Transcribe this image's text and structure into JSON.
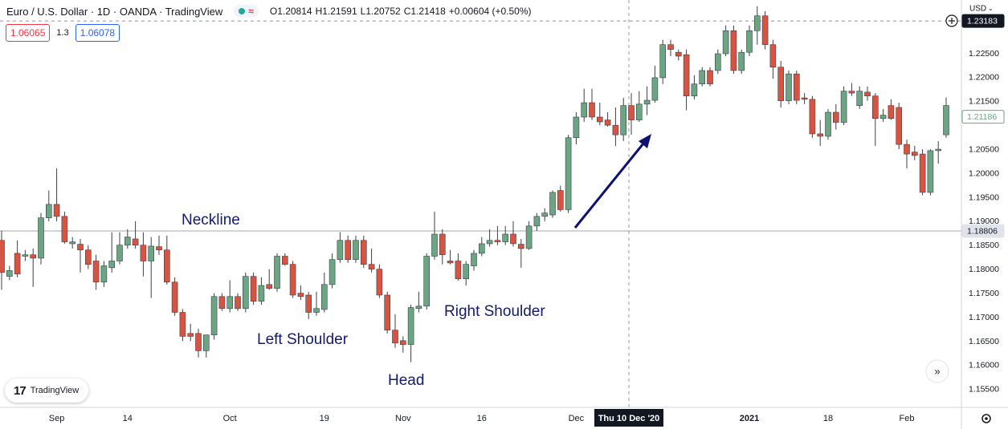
{
  "chart_data": {
    "type": "candlestick",
    "header": {
      "symbol": "Euro / U.S. Dollar · 1D · OANDA · TradingView",
      "ohlc": [
        {
          "label": "O",
          "value": "1.20814"
        },
        {
          "label": "H",
          "value": "1.21591"
        },
        {
          "label": "L",
          "value": "1.20752"
        },
        {
          "label": "C",
          "value": "1.21418"
        }
      ],
      "change": "+0.00604 (+0.50%)"
    },
    "trade": {
      "sell": "1.06065",
      "spread": "1.3",
      "buy": "1.06078"
    },
    "currency": "USD",
    "logo": "TradingView",
    "annotations": {
      "neckline": "Neckline",
      "left_shoulder": "Left Shoulder",
      "head": "Head",
      "right_shoulder": "Right Shoulder"
    },
    "neckline_price": 1.18806,
    "last_price": 1.21186,
    "crosshair": {
      "price": 1.23183,
      "label": "Thu 10 Dec '20"
    },
    "up_color": "#6ba583",
    "down_color": "#d75442",
    "wick_color": "#3c3f47",
    "ylim": [
      1.1513,
      1.2362
    ],
    "yticks": [
      {
        "value": 1.155,
        "label": "1.15500"
      },
      {
        "value": 1.16,
        "label": "1.16000"
      },
      {
        "value": 1.165,
        "label": "1.16500"
      },
      {
        "value": 1.17,
        "label": "1.17000"
      },
      {
        "value": 1.175,
        "label": "1.17500"
      },
      {
        "value": 1.18,
        "label": "1.18000"
      },
      {
        "value": 1.185,
        "label": "1.18500"
      },
      {
        "value": 1.19,
        "label": "1.19000"
      },
      {
        "value": 1.195,
        "label": "1.19500"
      },
      {
        "value": 1.2,
        "label": "1.20000"
      },
      {
        "value": 1.205,
        "label": "1.20500"
      },
      {
        "value": 1.215,
        "label": "1.21500"
      },
      {
        "value": 1.22,
        "label": "1.22000"
      },
      {
        "value": 1.225,
        "label": "1.22500"
      }
    ],
    "grid": false,
    "categories": [
      null,
      null,
      null,
      null,
      null,
      null,
      null,
      "Sep",
      null,
      null,
      null,
      null,
      null,
      null,
      null,
      null,
      "14",
      null,
      null,
      null,
      null,
      null,
      null,
      null,
      null,
      null,
      null,
      null,
      null,
      "Oct",
      null,
      null,
      null,
      null,
      null,
      null,
      null,
      null,
      null,
      null,
      null,
      "19",
      null,
      null,
      null,
      null,
      null,
      null,
      null,
      null,
      null,
      "Nov",
      null,
      null,
      null,
      null,
      null,
      null,
      null,
      null,
      null,
      "16",
      null,
      null,
      null,
      null,
      null,
      null,
      null,
      null,
      null,
      null,
      null,
      "Dec",
      null,
      null,
      null,
      null,
      null,
      null,
      null,
      null,
      null,
      null,
      null,
      null,
      null,
      null,
      null,
      null,
      null,
      null,
      null,
      null,
      null,
      "2021",
      null,
      null,
      null,
      null,
      null,
      null,
      null,
      null,
      null,
      "18",
      null,
      null,
      null,
      null,
      null,
      null,
      null,
      null,
      null,
      "Feb",
      null,
      null,
      null,
      null,
      null
    ],
    "open": [
      1.1861,
      1.1786,
      1.1834,
      1.1828,
      1.1831,
      1.1824,
      1.1908,
      1.1936,
      1.1911,
      1.1854,
      1.1853,
      1.1841,
      1.1818,
      1.1774,
      1.1804,
      1.1818,
      1.1851,
      1.1864,
      1.1851,
      1.1818,
      1.1848,
      1.1841,
      1.1774,
      1.1711,
      1.1667,
      1.1667,
      1.1631,
      1.1664,
      1.1744,
      1.1719,
      1.1744,
      1.1719,
      1.1786,
      1.1734,
      1.1769,
      1.1761,
      1.1828,
      1.1811,
      1.1751,
      1.1747,
      1.1711,
      1.1717,
      1.1769,
      1.1821,
      1.1861,
      1.1821,
      1.1861,
      1.1811,
      1.1801,
      1.1747,
      1.1674,
      1.1652,
      1.1644,
      1.1719,
      1.1724,
      1.1828,
      1.1874,
      1.1818,
      1.1818,
      1.1781,
      1.1808,
      1.1834,
      1.1854,
      1.1861,
      1.1858,
      1.1874,
      1.1853,
      1.1844,
      1.1891,
      1.1911,
      1.1914,
      1.1965,
      1.1925,
      1.2075,
      1.2118,
      1.2148,
      1.2118,
      1.2112,
      1.2101,
      1.2081,
      1.2142,
      1.2112,
      1.2145,
      1.2153,
      1.22,
      1.2269,
      1.2253,
      1.2248,
      1.2162,
      1.2187,
      1.2215,
      1.2215,
      1.225,
      1.2298,
      1.2215,
      1.2253,
      1.2298,
      1.2329,
      1.2269,
      1.2222,
      1.2152,
      1.2208,
      1.2158,
      1.2155,
      1.2083,
      1.2078,
      1.2128,
      1.2107,
      1.2172,
      1.2142,
      1.217,
      1.2162,
      1.2115,
      1.2142,
      1.2138,
      1.2061,
      1.2045,
      1.2041,
      1.1961,
      1.2048,
      1.2081
    ],
    "high": [
      1.1881,
      1.1808,
      1.1861,
      1.1841,
      1.1844,
      1.1918,
      1.1965,
      1.2011,
      1.1921,
      1.1868,
      1.1864,
      1.1851,
      1.1831,
      1.1818,
      1.1878,
      1.1878,
      1.1884,
      1.1901,
      1.1878,
      1.1868,
      1.1871,
      1.1871,
      1.1784,
      1.1718,
      1.1687,
      1.1677,
      1.1664,
      1.1751,
      1.1751,
      1.1778,
      1.1751,
      1.1794,
      1.1794,
      1.1784,
      1.1801,
      1.1834,
      1.1834,
      1.1818,
      1.1767,
      1.1754,
      1.1754,
      1.1794,
      1.1834,
      1.1878,
      1.1871,
      1.1871,
      1.1871,
      1.1844,
      1.1811,
      1.1754,
      1.1707,
      1.1661,
      1.1727,
      1.1754,
      1.1834,
      1.1921,
      1.1884,
      1.1841,
      1.1834,
      1.1818,
      1.1841,
      1.1868,
      1.1884,
      1.1891,
      1.1891,
      1.1901,
      1.1864,
      1.1901,
      1.1918,
      1.1928,
      1.1965,
      1.1975,
      1.2081,
      1.2128,
      1.2177,
      1.2177,
      1.2148,
      1.2128,
      1.2138,
      1.2158,
      1.2168,
      1.2172,
      1.2182,
      1.2225,
      1.2279,
      1.2279,
      1.2259,
      1.2259,
      1.2205,
      1.2222,
      1.2222,
      1.2259,
      1.2309,
      1.2309,
      1.2259,
      1.2309,
      1.2349,
      1.2339,
      1.2279,
      1.2235,
      1.2215,
      1.2215,
      1.2168,
      1.2162,
      1.2112,
      1.2135,
      1.2145,
      1.2182,
      1.2189,
      1.2182,
      1.2182,
      1.2168,
      1.2135,
      1.2155,
      1.2148,
      1.2071,
      1.2058,
      1.2051,
      1.2051,
      1.2068,
      1.2159
    ],
    "low": [
      1.1758,
      1.1778,
      1.1784,
      1.1818,
      1.1764,
      1.1811,
      1.1901,
      1.1901,
      1.1854,
      1.1844,
      1.1794,
      1.1801,
      1.1758,
      1.1764,
      1.1794,
      1.1811,
      1.1844,
      1.1844,
      1.1786,
      1.1741,
      1.1831,
      1.1769,
      1.1704,
      1.1651,
      1.1651,
      1.1617,
      1.1617,
      1.1654,
      1.1714,
      1.1711,
      1.1714,
      1.1711,
      1.1727,
      1.1727,
      1.1758,
      1.1754,
      1.1808,
      1.1741,
      1.1737,
      1.1697,
      1.1704,
      1.1711,
      1.1761,
      1.1814,
      1.1814,
      1.1814,
      1.1804,
      1.1794,
      1.1741,
      1.1667,
      1.1637,
      1.1627,
      1.1607,
      1.1711,
      1.1717,
      1.1821,
      1.1811,
      1.1811,
      1.1777,
      1.1767,
      1.1798,
      1.1828,
      1.1848,
      1.1851,
      1.1851,
      1.1848,
      1.1804,
      1.1841,
      1.1881,
      1.1901,
      1.1908,
      1.1921,
      1.1918,
      1.2061,
      1.2108,
      1.2112,
      1.2101,
      1.2098,
      1.2058,
      1.2068,
      1.2081,
      1.2108,
      1.2122,
      1.2148,
      1.2187,
      1.2245,
      1.2236,
      1.2132,
      1.2155,
      1.2182,
      1.2182,
      1.2208,
      1.2245,
      1.2208,
      1.2208,
      1.2245,
      1.2269,
      1.2259,
      1.2198,
      1.2138,
      1.2145,
      1.2145,
      1.2145,
      1.2075,
      1.2058,
      1.2071,
      1.2092,
      1.2101,
      1.2162,
      1.2135,
      1.2152,
      1.2058,
      1.2108,
      1.2112,
      1.2051,
      1.2011,
      1.2028,
      1.1955,
      1.1955,
      1.2021,
      1.2075
    ],
    "close": [
      1.1794,
      1.1798,
      1.1791,
      1.1831,
      1.1824,
      1.1908,
      1.1936,
      1.1911,
      1.1858,
      1.1858,
      1.1841,
      1.1811,
      1.1774,
      1.1808,
      1.1818,
      1.1851,
      1.1868,
      1.1851,
      1.1818,
      1.1849,
      1.1841,
      1.1774,
      1.1711,
      1.1661,
      1.1661,
      1.1631,
      1.1664,
      1.1744,
      1.1719,
      1.1744,
      1.1719,
      1.1786,
      1.1734,
      1.1767,
      1.1761,
      1.1828,
      1.1811,
      1.1747,
      1.1744,
      1.1711,
      1.1719,
      1.1769,
      1.1821,
      1.1861,
      1.1821,
      1.1861,
      1.1811,
      1.1801,
      1.1747,
      1.1674,
      1.1647,
      1.1644,
      1.1721,
      1.1724,
      1.1828,
      1.1874,
      1.1831,
      1.1814,
      1.1781,
      1.1811,
      1.1834,
      1.1854,
      1.1861,
      1.1858,
      1.1874,
      1.1854,
      1.1844,
      1.1891,
      1.1911,
      1.1918,
      1.1961,
      1.1925,
      1.2075,
      1.2118,
      1.2148,
      1.2118,
      1.2108,
      1.2101,
      1.2081,
      1.2142,
      1.2112,
      1.2145,
      1.2153,
      1.22,
      1.2269,
      1.2259,
      1.2245,
      1.2162,
      1.2187,
      1.2215,
      1.2187,
      1.225,
      1.2298,
      1.2215,
      1.2253,
      1.2298,
      1.2329,
      1.2269,
      1.2222,
      1.2152,
      1.2208,
      1.2153,
      1.2155,
      1.2083,
      1.2078,
      1.2128,
      1.2107,
      1.2172,
      1.2168,
      1.2172,
      1.2162,
      1.2115,
      1.2122,
      1.2115,
      1.2061,
      1.2041,
      1.2038,
      1.1961,
      1.2048,
      1.2051,
      1.2142
    ]
  }
}
